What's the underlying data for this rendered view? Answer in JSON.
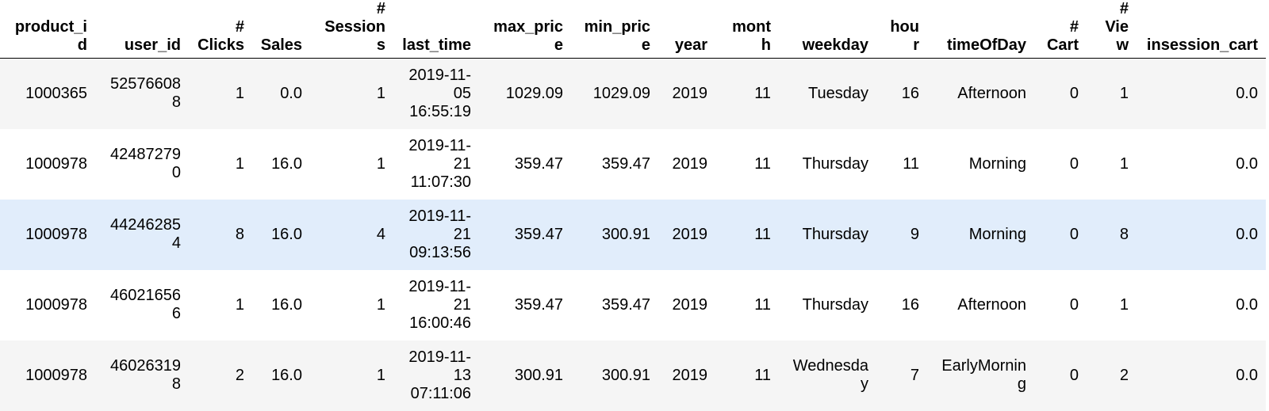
{
  "colors": {
    "row_odd": "#f5f5f5",
    "row_even": "#ffffff",
    "row_hover": "#e1edfb",
    "header_rule": "#000000"
  },
  "table": {
    "columns": [
      "product_id",
      "user_id",
      "# Clicks",
      "Sales",
      "# Sessions",
      "last_time",
      "max_price",
      "min_price",
      "year",
      "month",
      "weekday",
      "hour",
      "timeOfDay",
      "# Cart",
      "# View",
      "insession_cart"
    ],
    "hovered_row": 2,
    "rows": [
      [
        "1000365",
        "525766088",
        "1",
        "0.0",
        "1",
        "2019-11-05 16:55:19",
        "1029.09",
        "1029.09",
        "2019",
        "11",
        "Tuesday",
        "16",
        "Afternoon",
        "0",
        "1",
        "0.0"
      ],
      [
        "1000978",
        "424872790",
        "1",
        "16.0",
        "1",
        "2019-11-21 11:07:30",
        "359.47",
        "359.47",
        "2019",
        "11",
        "Thursday",
        "11",
        "Morning",
        "0",
        "1",
        "0.0"
      ],
      [
        "1000978",
        "442462854",
        "8",
        "16.0",
        "4",
        "2019-11-21 09:13:56",
        "359.47",
        "300.91",
        "2019",
        "11",
        "Thursday",
        "9",
        "Morning",
        "0",
        "8",
        "0.0"
      ],
      [
        "1000978",
        "460216566",
        "1",
        "16.0",
        "1",
        "2019-11-21 16:00:46",
        "359.47",
        "359.47",
        "2019",
        "11",
        "Thursday",
        "16",
        "Afternoon",
        "0",
        "1",
        "0.0"
      ],
      [
        "1000978",
        "460263198",
        "2",
        "16.0",
        "1",
        "2019-11-13 07:11:06",
        "300.91",
        "300.91",
        "2019",
        "11",
        "Wednesday",
        "7",
        "EarlyMorning",
        "0",
        "2",
        "0.0"
      ]
    ]
  }
}
